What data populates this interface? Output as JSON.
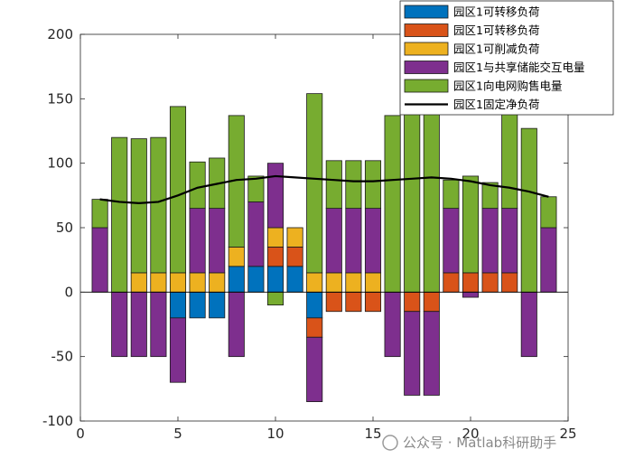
{
  "chart_data": {
    "type": "bar",
    "stacked": true,
    "x": [
      1,
      2,
      3,
      4,
      5,
      6,
      7,
      8,
      9,
      10,
      11,
      12,
      13,
      14,
      15,
      16,
      17,
      18,
      19,
      20,
      21,
      22,
      23,
      24
    ],
    "xlim": [
      0,
      25
    ],
    "ylim": [
      -100,
      200
    ],
    "xticks": [
      0,
      5,
      10,
      15,
      20,
      25
    ],
    "yticks": [
      -100,
      -50,
      0,
      50,
      100,
      150,
      200
    ],
    "grid": false,
    "legend_position": "top-right",
    "series": [
      {
        "name": "园区1可转移负荷",
        "kind": "bar",
        "color": "#0072BD",
        "values": [
          0,
          0,
          0,
          0,
          -20,
          -20,
          -20,
          20,
          20,
          20,
          20,
          -20,
          0,
          0,
          0,
          0,
          0,
          0,
          0,
          0,
          0,
          0,
          0,
          0
        ]
      },
      {
        "name": "园区1可转移负荷",
        "kind": "bar",
        "color": "#D95319",
        "values": [
          0,
          0,
          0,
          0,
          0,
          0,
          0,
          0,
          0,
          15,
          15,
          -15,
          -15,
          -15,
          -15,
          0,
          -15,
          -15,
          15,
          15,
          15,
          15,
          0,
          0
        ]
      },
      {
        "name": "园区1可削减负荷",
        "kind": "bar",
        "color": "#EDB120",
        "values": [
          0,
          0,
          15,
          15,
          15,
          15,
          15,
          15,
          0,
          15,
          15,
          15,
          15,
          15,
          15,
          0,
          0,
          0,
          0,
          0,
          0,
          0,
          0,
          0
        ]
      },
      {
        "name": "园区1与共享储能交互电量",
        "kind": "bar",
        "color": "#7E2F8E",
        "values": [
          50,
          -50,
          -50,
          -50,
          -50,
          50,
          50,
          -50,
          50,
          50,
          0,
          -50,
          50,
          50,
          50,
          -50,
          -65,
          -65,
          50,
          -4,
          50,
          50,
          -50,
          50
        ]
      },
      {
        "name": "园区1向电网购售电量",
        "kind": "bar",
        "color": "#77AC30",
        "values": [
          22,
          120,
          104,
          105,
          129,
          36,
          39,
          102,
          20,
          0,
          0,
          139,
          37,
          37,
          37,
          137,
          160,
          160,
          22,
          75,
          20,
          117,
          127,
          24
        ]
      },
      {
        "name": "园区1固定净负荷",
        "kind": "line",
        "color": "#000000",
        "values": [
          72,
          70,
          69,
          70,
          75,
          81,
          84,
          87,
          88,
          90,
          89,
          88,
          87,
          86,
          86,
          87,
          88,
          89,
          88,
          86,
          83,
          81,
          78,
          74
        ]
      }
    ],
    "neg_extra": {
      "x": 10,
      "value": -10,
      "color": "#77AC30"
    }
  },
  "watermark": "公众号 · Matlab科研助手"
}
